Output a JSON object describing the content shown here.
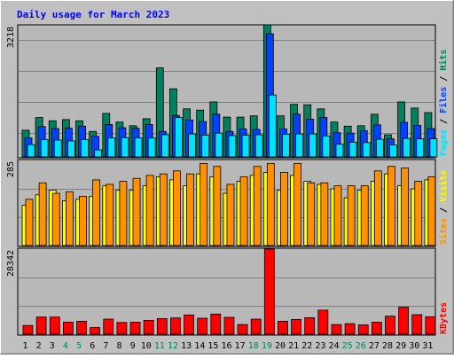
{
  "chart_data": [
    {
      "type": "bar",
      "title": "Daily usage for March 2023",
      "categories": [
        "1",
        "2",
        "3",
        "4",
        "5",
        "6",
        "7",
        "8",
        "9",
        "10",
        "11",
        "12",
        "13",
        "14",
        "15",
        "16",
        "17",
        "18",
        "19",
        "20",
        "21",
        "22",
        "23",
        "24",
        "25",
        "26",
        "27",
        "28",
        "29",
        "30",
        "31"
      ],
      "weekend_categories": [
        "4",
        "5",
        "11",
        "12",
        "18",
        "19",
        "25",
        "26"
      ],
      "y_axis_max_label": "3218",
      "ylim": [
        0,
        3218
      ],
      "series": [
        {
          "name": "Hits",
          "color": "#00805c",
          "values": [
            650,
            960,
            880,
            910,
            880,
            620,
            1060,
            850,
            760,
            930,
            2170,
            1660,
            1170,
            1140,
            1340,
            970,
            970,
            1000,
            3218,
            1000,
            1280,
            1270,
            1170,
            850,
            750,
            760,
            1040,
            540,
            1340,
            1190,
            1080
          ]
        },
        {
          "name": "Files",
          "color": "#0042ff",
          "values": [
            460,
            740,
            690,
            700,
            750,
            500,
            790,
            710,
            700,
            790,
            620,
            1010,
            900,
            860,
            1040,
            620,
            680,
            670,
            3000,
            680,
            1040,
            920,
            960,
            590,
            580,
            640,
            780,
            440,
            840,
            770,
            690
          ]
        },
        {
          "name": "Pages",
          "color": "#00e0ff",
          "values": [
            300,
            420,
            410,
            390,
            420,
            170,
            460,
            470,
            460,
            460,
            540,
            960,
            560,
            530,
            580,
            520,
            530,
            540,
            1510,
            550,
            560,
            560,
            510,
            310,
            360,
            350,
            430,
            290,
            450,
            440,
            440
          ]
        }
      ],
      "legend": [
        "Pages",
        "Files",
        "Hits"
      ],
      "legend_placement": "right-vertical"
    },
    {
      "type": "bar",
      "y_axis_max_label": "285",
      "ylim": [
        0,
        285
      ],
      "series": [
        {
          "name": "Visits",
          "color": "#ffff00",
          "values": [
            135,
            170,
            185,
            150,
            155,
            165,
            200,
            185,
            185,
            200,
            230,
            220,
            200,
            240,
            230,
            175,
            215,
            235,
            245,
            185,
            235,
            215,
            205,
            190,
            160,
            185,
            215,
            240,
            200,
            190,
            220
          ]
        },
        {
          "name": "Sites",
          "color": "#ff9000",
          "values": [
            155,
            210,
            175,
            180,
            165,
            220,
            205,
            215,
            225,
            235,
            240,
            250,
            240,
            275,
            265,
            205,
            230,
            265,
            275,
            245,
            275,
            210,
            210,
            200,
            200,
            200,
            250,
            265,
            260,
            215,
            230
          ]
        }
      ],
      "legend": [
        "Sites",
        "Visits"
      ],
      "legend_placement": "right-vertical"
    },
    {
      "type": "bar",
      "y_axis_max_label": "28342",
      "ylim": [
        0,
        28342
      ],
      "series": [
        {
          "name": "KBytes",
          "color": "#ff0000",
          "values": [
            2900,
            5700,
            5700,
            4000,
            4300,
            2200,
            5000,
            3900,
            4000,
            4600,
            5200,
            5400,
            6400,
            5300,
            6700,
            5600,
            3200,
            5000,
            28342,
            4300,
            4900,
            5500,
            8000,
            3200,
            3500,
            3100,
            4000,
            6000,
            9000,
            6500,
            5800
          ]
        }
      ],
      "legend": [
        "KBytes"
      ],
      "legend_placement": "right-vertical"
    }
  ]
}
